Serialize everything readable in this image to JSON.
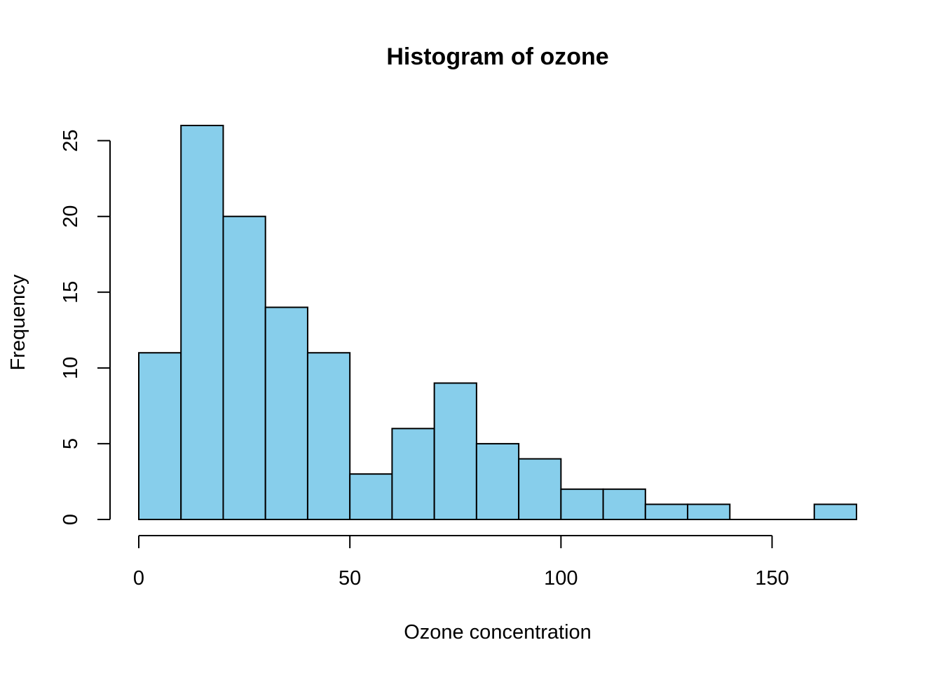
{
  "chart_data": {
    "type": "bar",
    "subtype": "histogram",
    "title": "Histogram of ozone",
    "xlabel": "Ozone concentration",
    "ylabel": "Frequency",
    "bin_edges": [
      0,
      10,
      20,
      30,
      40,
      50,
      60,
      70,
      80,
      90,
      100,
      110,
      120,
      130,
      140,
      150,
      160,
      170
    ],
    "values": [
      11,
      26,
      20,
      14,
      11,
      3,
      6,
      9,
      5,
      4,
      2,
      2,
      1,
      1,
      0,
      0,
      1
    ],
    "xlim": [
      0,
      170
    ],
    "ylim": [
      0,
      26
    ],
    "x_ticks": [
      0,
      50,
      100,
      150
    ],
    "y_ticks": [
      0,
      5,
      10,
      15,
      20,
      25
    ],
    "bar_color": "#87CEEB",
    "bar_border_color": "#000000",
    "grid": false,
    "legend": "none"
  }
}
